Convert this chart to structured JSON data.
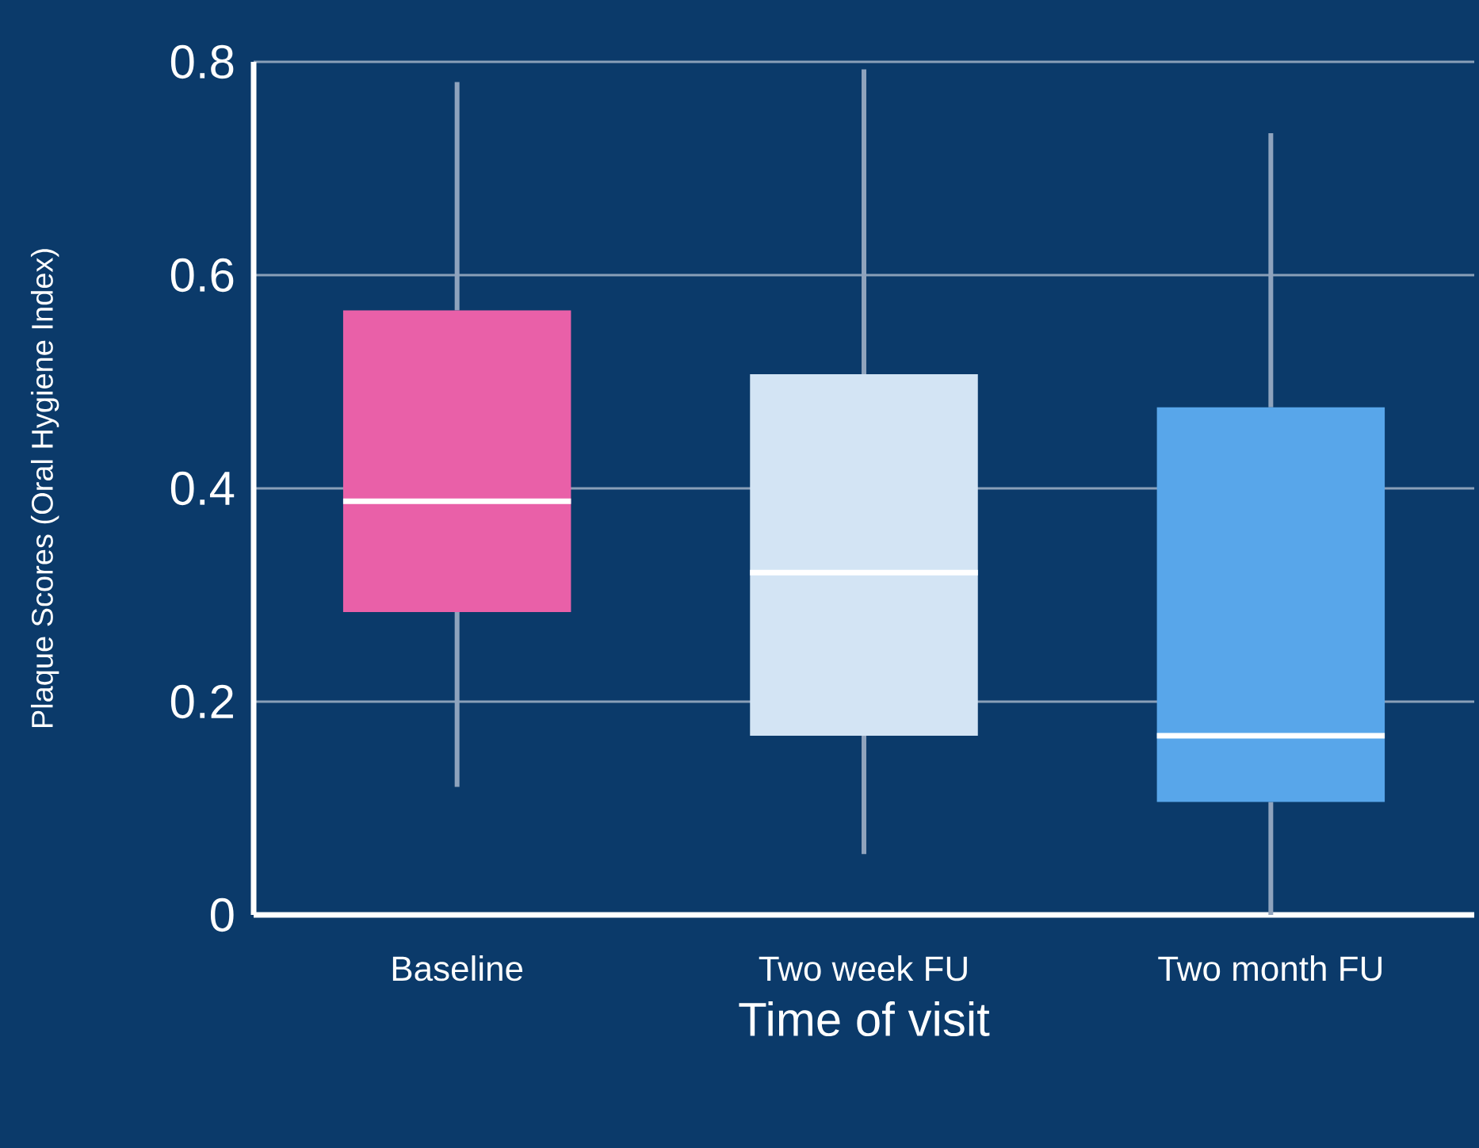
{
  "chart_data": {
    "type": "box",
    "xlabel": "Time of visit",
    "ylabel": "Plaque Scores (Oral Hygiene Index)",
    "categories": [
      "Baseline",
      "Two week FU",
      "Two month FU"
    ],
    "colors": [
      "#e960a8",
      "#d3e4f4",
      "#58a6ea"
    ],
    "boxes": [
      {
        "low": 0.12,
        "q1": 0.284,
        "median": 0.388,
        "q3": 0.567,
        "high": 0.781
      },
      {
        "low": 0.057,
        "q1": 0.168,
        "median": 0.321,
        "q3": 0.507,
        "high": 0.793
      },
      {
        "low": 0.0,
        "q1": 0.106,
        "median": 0.168,
        "q3": 0.476,
        "high": 0.733
      }
    ],
    "ylim": [
      0,
      0.8
    ],
    "yticks": [
      0,
      0.2,
      0.4,
      0.6,
      0.8
    ],
    "grid": "y"
  }
}
